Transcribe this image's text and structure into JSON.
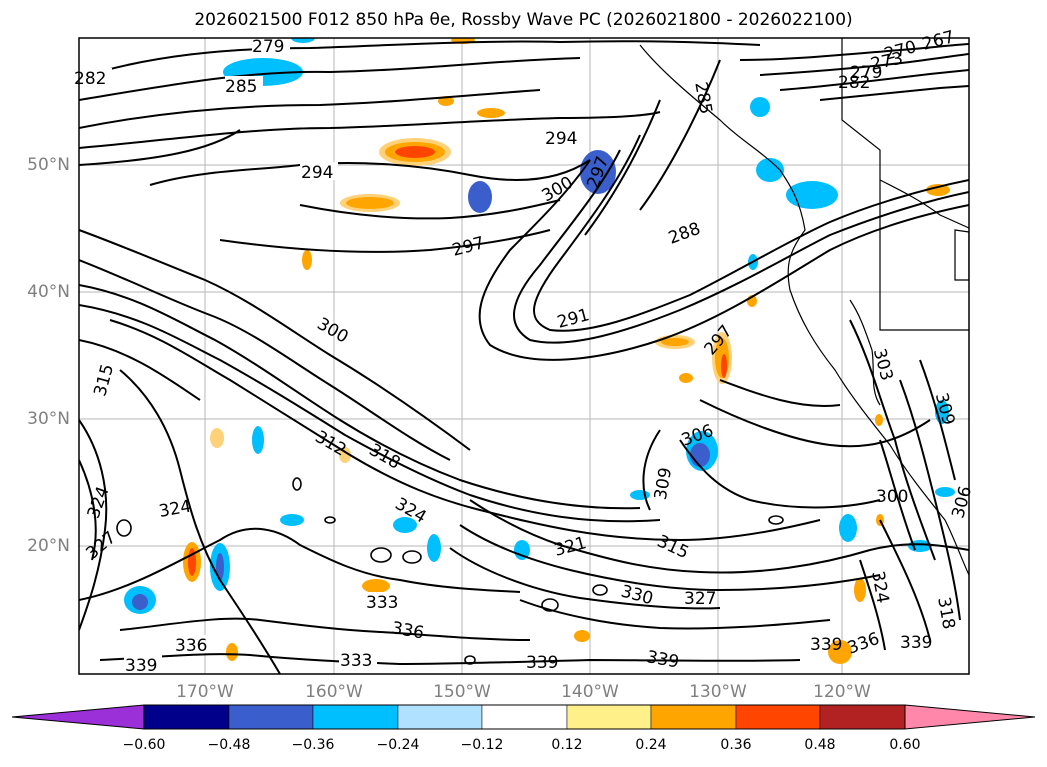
{
  "title": "2026021500 F012 850 hPa θe, Rossby Wave PC (2026021800 - 2026022100)",
  "map": {
    "lat_labels": [
      "50°N",
      "40°N",
      "30°N",
      "20°N"
    ],
    "lon_labels": [
      "170°W",
      "160°W",
      "150°W",
      "140°W",
      "130°W",
      "120°W"
    ],
    "contour_labels": [
      "279",
      "282",
      "285",
      "285",
      "270",
      "267",
      "273",
      "279",
      "282",
      "294",
      "294",
      "300",
      "297",
      "297",
      "288",
      "291",
      "300",
      "297",
      "303",
      "309",
      "306",
      "309",
      "300",
      "306",
      "315",
      "312",
      "318",
      "324",
      "324",
      "324",
      "327",
      "321",
      "315",
      "333",
      "330",
      "327",
      "318",
      "336",
      "336",
      "333",
      "339",
      "339",
      "339",
      "336",
      "339",
      "339",
      "324"
    ]
  },
  "colorbar": {
    "ticks": [
      "−0.60",
      "−0.48",
      "−0.36",
      "−0.24",
      "−0.12",
      "0.12",
      "0.24",
      "0.36",
      "0.48",
      "0.60"
    ],
    "colors": [
      "#9b30d9",
      "#00008b",
      "#3a5fcd",
      "#00bfff",
      "#b0e2ff",
      "#ffffff",
      "#fff08a",
      "#ffa500",
      "#ff4500",
      "#b22222",
      "#ff88aa"
    ]
  }
}
